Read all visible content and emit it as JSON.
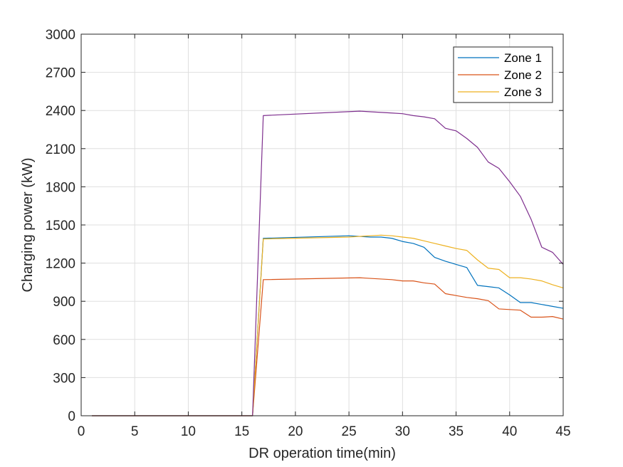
{
  "chart_data": {
    "type": "line",
    "title": "",
    "xlabel": "DR operation time(min)",
    "ylabel": "Charging power (kW)",
    "xlim": [
      0,
      45
    ],
    "ylim": [
      0,
      3000
    ],
    "xticks": [
      0,
      5,
      10,
      15,
      20,
      25,
      30,
      35,
      40,
      45
    ],
    "yticks": [
      0,
      300,
      600,
      900,
      1200,
      1500,
      1800,
      2100,
      2400,
      2700,
      3000
    ],
    "grid": true,
    "legend_position": "top-right",
    "series": [
      {
        "name": "Zone 1",
        "color": "#0072BD",
        "in_legend": true,
        "x": [
          1,
          16,
          17,
          25,
          26,
          27,
          28,
          29,
          30,
          31,
          32,
          33,
          34,
          35,
          36,
          37,
          38,
          39,
          40,
          41,
          42,
          43,
          44,
          45
        ],
        "y": [
          0,
          0,
          1395,
          1415,
          1410,
          1405,
          1405,
          1395,
          1370,
          1355,
          1325,
          1245,
          1215,
          1190,
          1165,
          1025,
          1015,
          1005,
          950,
          890,
          890,
          875,
          860,
          845
        ]
      },
      {
        "name": "Zone 2",
        "color": "#D95319",
        "in_legend": true,
        "x": [
          1,
          16,
          17,
          26,
          27,
          28,
          29,
          30,
          31,
          32,
          33,
          34,
          35,
          36,
          37,
          38,
          39,
          40,
          41,
          42,
          43,
          44,
          45
        ],
        "y": [
          0,
          0,
          1070,
          1085,
          1080,
          1075,
          1070,
          1060,
          1060,
          1045,
          1035,
          960,
          945,
          930,
          920,
          905,
          840,
          835,
          830,
          775,
          775,
          780,
          760
        ]
      },
      {
        "name": "Zone 3",
        "color": "#EDB120",
        "in_legend": true,
        "x": [
          1,
          16,
          17,
          25,
          26,
          27,
          28,
          29,
          30,
          31,
          32,
          33,
          34,
          35,
          36,
          37,
          38,
          39,
          40,
          41,
          42,
          43,
          44,
          45
        ],
        "y": [
          0,
          0,
          1390,
          1405,
          1410,
          1415,
          1420,
          1415,
          1405,
          1395,
          1375,
          1355,
          1335,
          1315,
          1300,
          1225,
          1160,
          1150,
          1085,
          1085,
          1075,
          1060,
          1030,
          1005
        ]
      },
      {
        "name": "",
        "color": "#7E2F8E",
        "in_legend": false,
        "x": [
          1,
          16,
          17,
          26,
          27,
          28,
          29,
          30,
          31,
          32,
          33,
          34,
          35,
          36,
          37,
          38,
          39,
          40,
          41,
          42,
          43,
          44,
          45
        ],
        "y": [
          0,
          0,
          2360,
          2395,
          2390,
          2385,
          2380,
          2375,
          2360,
          2350,
          2335,
          2260,
          2240,
          2180,
          2110,
          1995,
          1945,
          1840,
          1725,
          1545,
          1325,
          1285,
          1190
        ]
      }
    ]
  }
}
